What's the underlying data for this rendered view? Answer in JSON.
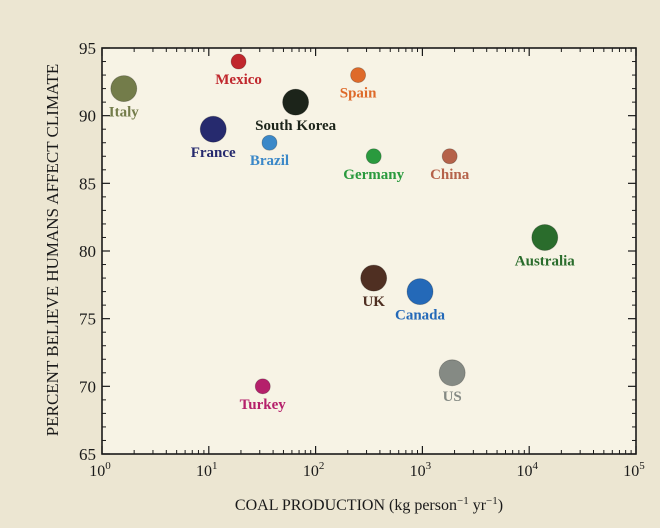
{
  "chart_data": {
    "type": "scatter",
    "title": "",
    "xlabel": "COAL PRODUCTION (kg person",
    "xlabel_sup1": "−1",
    "xlabel_mid": " yr",
    "xlabel_sup2": "−1",
    "xlabel_end": ")",
    "ylabel": "PERCENT BELIEVE HUMANS AFFECT CLIMATE",
    "x_scale": "log",
    "xlim": [
      1,
      100000
    ],
    "ylim": [
      65,
      95
    ],
    "x_ticks": [
      {
        "value": 1,
        "base": "10",
        "exp": "0"
      },
      {
        "value": 10,
        "base": "10",
        "exp": "1"
      },
      {
        "value": 100,
        "base": "10",
        "exp": "2"
      },
      {
        "value": 1000,
        "base": "10",
        "exp": "3"
      },
      {
        "value": 10000,
        "base": "10",
        "exp": "4"
      },
      {
        "value": 100000,
        "base": "10",
        "exp": "5"
      }
    ],
    "y_ticks": [
      "65",
      "70",
      "75",
      "80",
      "85",
      "90",
      "95"
    ],
    "grid": false,
    "points": [
      {
        "label": "Italy",
        "x": 1.6,
        "y": 92,
        "size": "large",
        "color": "#737c4a",
        "label_pos": "below"
      },
      {
        "label": "Mexico",
        "x": 19,
        "y": 94,
        "size": "small",
        "color": "#c0272d",
        "label_pos": "below"
      },
      {
        "label": "Spain",
        "x": 250,
        "y": 93,
        "size": "small",
        "color": "#de6a2a",
        "label_pos": "below"
      },
      {
        "label": "South Korea",
        "x": 65,
        "y": 91,
        "size": "large",
        "color": "#1c241a",
        "label_pos": "below"
      },
      {
        "label": "France",
        "x": 11,
        "y": 89,
        "size": "large",
        "color": "#262a6e",
        "label_pos": "below"
      },
      {
        "label": "Brazil",
        "x": 37,
        "y": 88,
        "size": "small",
        "color": "#3b88c8",
        "label_pos": "below"
      },
      {
        "label": "Germany",
        "x": 350,
        "y": 87,
        "size": "small",
        "color": "#2a9a3e",
        "label_pos": "below"
      },
      {
        "label": "China",
        "x": 1800,
        "y": 87,
        "size": "small",
        "color": "#b5624a",
        "label_pos": "below"
      },
      {
        "label": "Australia",
        "x": 14000,
        "y": 81,
        "size": "large",
        "color": "#2a6c2c",
        "label_pos": "below"
      },
      {
        "label": "UK",
        "x": 350,
        "y": 78,
        "size": "large",
        "color": "#4f2f22",
        "label_pos": "below"
      },
      {
        "label": "Canada",
        "x": 950,
        "y": 77,
        "size": "large",
        "color": "#2469b8",
        "label_pos": "below"
      },
      {
        "label": "US",
        "x": 1900,
        "y": 71,
        "size": "large",
        "color": "#858a84",
        "label_pos": "below"
      },
      {
        "label": "Turkey",
        "x": 32,
        "y": 70,
        "size": "small",
        "color": "#b5206b",
        "label_pos": "below"
      }
    ]
  }
}
